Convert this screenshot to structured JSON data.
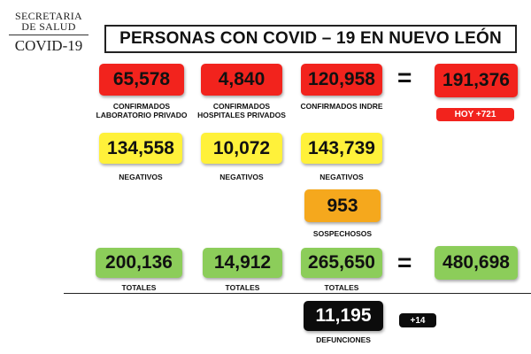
{
  "header": {
    "logo_line1": "SECRETARIA",
    "logo_line2": "DE SALUD",
    "logo_line3": "COVID-19",
    "title": "PERSONAS CON COVID – 19 EN NUEVO LEÓN"
  },
  "confirmados": {
    "privado": {
      "value": "65,578",
      "label_line1": "CONFIRMADOS",
      "label_line2": "LABORATORIO PRIVADO"
    },
    "hospitales": {
      "value": "4,840",
      "label_line1": "CONFIRMADOS",
      "label_line2": "HOSPITALES PRIVADOS"
    },
    "indre": {
      "value": "120,958",
      "label": "CONFIRMADOS INDRE"
    },
    "equals": "=",
    "total": {
      "value": "191,376"
    },
    "hoy": "HOY +721"
  },
  "negativos": {
    "privado": {
      "value": "134,558",
      "label": "NEGATIVOS"
    },
    "hospitales": {
      "value": "10,072",
      "label": "NEGATIVOS"
    },
    "indre": {
      "value": "143,739",
      "label": "NEGATIVOS"
    }
  },
  "sospechosos": {
    "value": "953",
    "label": "SOSPECHOSOS"
  },
  "totales": {
    "privado": {
      "value": "200,136",
      "label": "TOTALES"
    },
    "hospitales": {
      "value": "14,912",
      "label": "TOTALES"
    },
    "indre": {
      "value": "265,650",
      "label": "TOTALES"
    },
    "equals": "=",
    "grand_total": {
      "value": "480,698"
    }
  },
  "defunciones": {
    "value": "11,195",
    "label": "DEFUNCIONES",
    "delta": "+14"
  },
  "colors": {
    "confirmados": "#f2231d",
    "negativos": "#fff13a",
    "sospechosos": "#f5a81d",
    "totales": "#8ccd5a",
    "defunciones": "#0c0c0c"
  }
}
